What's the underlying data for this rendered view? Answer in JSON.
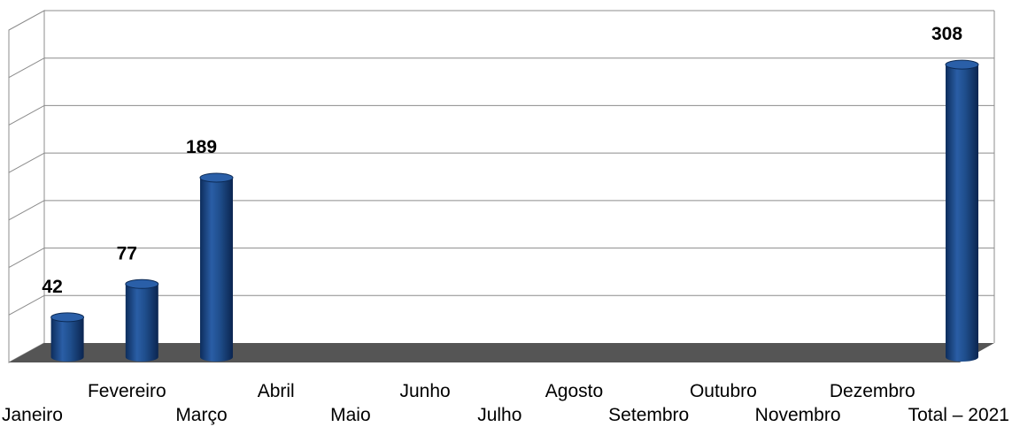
{
  "chart_data": {
    "type": "bar",
    "title": "",
    "xlabel": "",
    "ylabel": "",
    "categories": [
      "Janeiro",
      "Fevereiro",
      "Março",
      "Abril",
      "Maio",
      "Junho",
      "Julho",
      "Agosto",
      "Setembro",
      "Outubro",
      "Novembro",
      "Dezembro",
      "Total – 2021"
    ],
    "values": [
      42,
      77,
      189,
      null,
      null,
      null,
      null,
      null,
      null,
      null,
      null,
      null,
      308
    ],
    "data_labels": [
      "42",
      "77",
      "189",
      "",
      "",
      "",
      "",
      "",
      "",
      "",
      "",
      "",
      "308"
    ],
    "ylim": [
      0,
      350
    ],
    "grid": true,
    "legend": "none",
    "style": "3d-cylinder"
  },
  "colors": {
    "bar_body": "#1f4e8c",
    "bar_dark": "#0c2a55",
    "bar_top": "#2a5fa8",
    "floor": "#555555",
    "gridline": "#8c8c8c"
  }
}
